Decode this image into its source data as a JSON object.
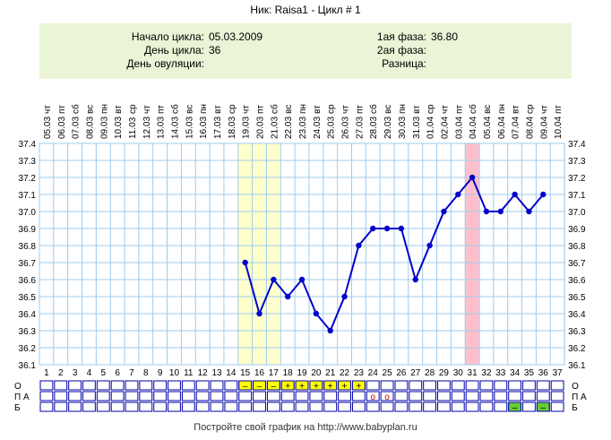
{
  "header": {
    "title": "Ник: Raisa1 - Цикл # 1"
  },
  "info": {
    "cycle_start_label": "Начало цикла:",
    "cycle_start_value": "05.03.2009",
    "cycle_day_label": "День цикла:",
    "cycle_day_value": "36",
    "ovulation_day_label": "День овуляции:",
    "ovulation_day_value": "",
    "phase1_label": "1ая фаза:",
    "phase1_value": "36.80",
    "phase2_label": "2ая фаза:",
    "phase2_value": "",
    "difference_label": "Разница:",
    "difference_value": ""
  },
  "chart_data": {
    "type": "line",
    "title": "",
    "xlabel": "",
    "ylabel": "",
    "ylim": [
      36.1,
      37.4
    ],
    "y_ticks": [
      "36.1",
      "36.2",
      "36.3",
      "36.4",
      "36.5",
      "36.6",
      "36.7",
      "36.8",
      "36.9",
      "37.0",
      "37.1",
      "37.2",
      "37.3",
      "37.4"
    ],
    "weekdays": [
      "чт",
      "пт",
      "сб",
      "вс",
      "пн",
      "вт",
      "ср",
      "чт",
      "пт",
      "сб",
      "вс",
      "пн",
      "вт",
      "ср",
      "чт",
      "пт",
      "сб",
      "вс",
      "пн",
      "вт",
      "ср",
      "чт",
      "пт",
      "сб",
      "вс",
      "пн",
      "вт",
      "ср",
      "чт",
      "пт",
      "сб",
      "вс",
      "пн",
      "вт",
      "ср",
      "чт",
      "пт"
    ],
    "dates": [
      "05.03",
      "06.03",
      "07.03",
      "08.03",
      "09.03",
      "10.03",
      "11.03",
      "12.03",
      "13.03",
      "14.03",
      "15.03",
      "16.03",
      "17.03",
      "18.03",
      "19.03",
      "20.03",
      "21.03",
      "22.03",
      "23.03",
      "24.03",
      "25.03",
      "26.03",
      "27.03",
      "28.03",
      "29.03",
      "30.03",
      "31.03",
      "01.04",
      "02.04",
      "03.04",
      "04.04",
      "05.04",
      "06.04",
      "07.04",
      "08.04",
      "09.04",
      "10.04"
    ],
    "days": [
      1,
      2,
      3,
      4,
      5,
      6,
      7,
      8,
      9,
      10,
      11,
      12,
      13,
      14,
      15,
      16,
      17,
      18,
      19,
      20,
      21,
      22,
      23,
      24,
      25,
      26,
      27,
      28,
      29,
      30,
      31,
      32,
      33,
      34,
      35,
      36,
      37
    ],
    "series": [
      {
        "x": [
          15,
          16,
          17,
          18,
          19,
          20,
          21,
          22,
          23,
          24,
          25,
          26,
          27,
          28,
          29,
          30,
          31,
          32,
          33,
          34,
          35,
          36
        ],
        "values": [
          36.7,
          36.4,
          36.6,
          36.5,
          36.6,
          36.4,
          36.3,
          36.5,
          36.8,
          36.9,
          36.9,
          36.9,
          36.6,
          36.8,
          37.0,
          37.1,
          37.2,
          37.0,
          37.0,
          37.1,
          37.0,
          37.1
        ]
      }
    ],
    "moon_days": [
      8,
      37
    ],
    "highlight_yellow_days": [
      15,
      16,
      17
    ],
    "highlight_pink_days": [
      31
    ],
    "colors": {
      "line": "#0000cc",
      "grid": "#9ecbef",
      "yellow": "#ffffcc",
      "pink": "#ffc0cb",
      "bottom_cell": "#ffff00",
      "green": "#66cc33"
    },
    "bottom_rows": {
      "row_labels_left": [
        "О",
        "П А",
        "Б"
      ],
      "row_labels_right": [
        "О",
        "П А",
        "Б"
      ],
      "o_row": [
        {
          "day": 15,
          "mark": "–"
        },
        {
          "day": 16,
          "mark": "–"
        },
        {
          "day": 17,
          "mark": "–"
        },
        {
          "day": 18,
          "mark": "+"
        },
        {
          "day": 19,
          "mark": "+"
        },
        {
          "day": 20,
          "mark": "+"
        },
        {
          "day": 21,
          "mark": "+"
        },
        {
          "day": 22,
          "mark": "+"
        },
        {
          "day": 23,
          "mark": "+"
        }
      ],
      "pa_row": [
        {
          "day": 24,
          "mark": "o"
        },
        {
          "day": 25,
          "mark": "o"
        }
      ],
      "b_row": [
        {
          "day": 34,
          "mark": "–"
        },
        {
          "day": 36,
          "mark": "–"
        }
      ]
    }
  },
  "footer": {
    "text": "Постройте свой график на http://www.babyplan.ru"
  }
}
